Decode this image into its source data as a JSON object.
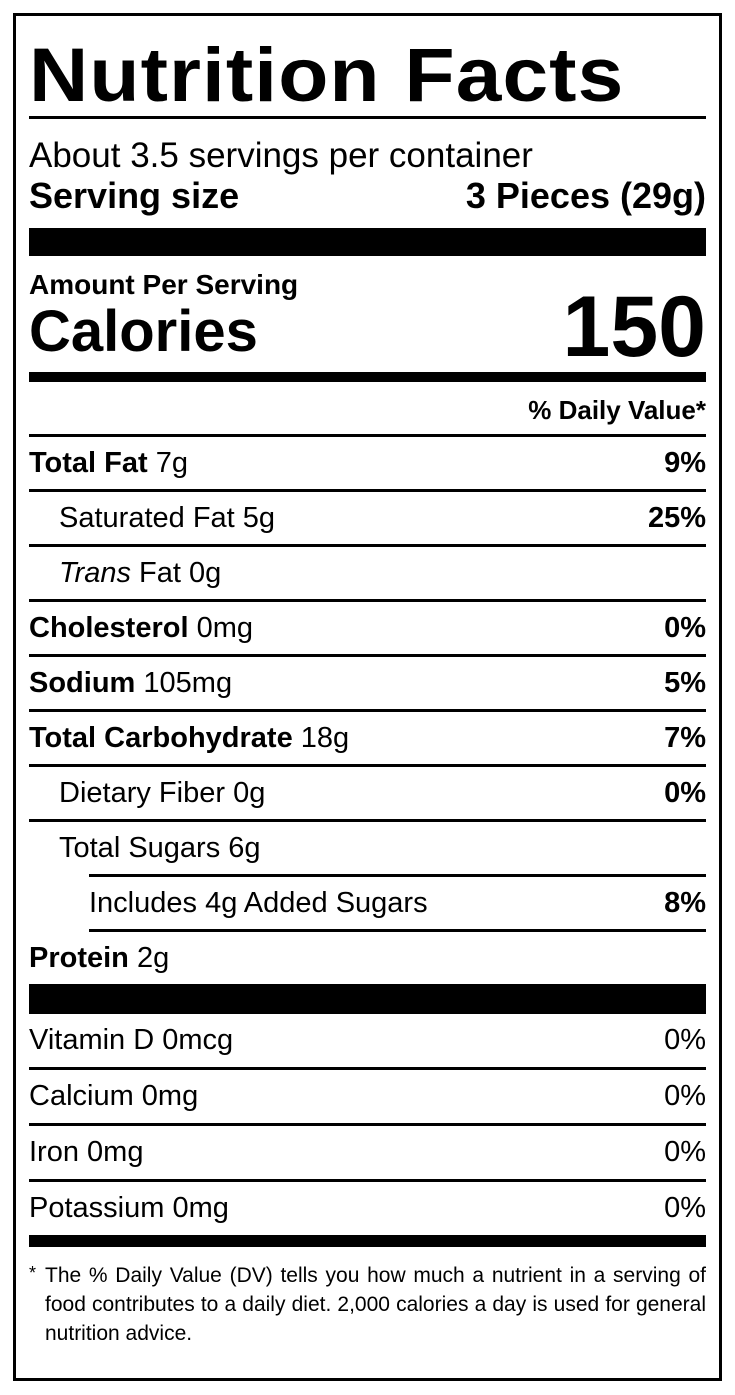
{
  "title": "Nutrition Facts",
  "servings_per_container": "About 3.5 servings per container",
  "serving_size": {
    "label": "Serving size",
    "value": "3 Pieces (29g)"
  },
  "amount_per_serving": "Amount Per Serving",
  "calories": {
    "label": "Calories",
    "value": "150"
  },
  "daily_value_header": "% Daily Value*",
  "nutrients": [
    {
      "name": "Total Fat",
      "amount": "7g",
      "dv": "9%"
    },
    {
      "name": "Saturated Fat",
      "amount": "5g",
      "dv": "25%"
    },
    {
      "name": "Trans",
      "name_suffix": "Fat",
      "amount": "0g",
      "dv": ""
    },
    {
      "name": "Cholesterol",
      "amount": "0mg",
      "dv": "0%"
    },
    {
      "name": "Sodium",
      "amount": "105mg",
      "dv": "5%"
    },
    {
      "name": "Total Carbohydrate",
      "amount": "18g",
      "dv": "7%"
    },
    {
      "name": "Dietary Fiber",
      "amount": "0g",
      "dv": "0%"
    },
    {
      "name": "Total Sugars",
      "amount": "6g",
      "dv": ""
    },
    {
      "name": "Includes 4g Added Sugars",
      "amount": "",
      "dv": "8%"
    },
    {
      "name": "Protein",
      "amount": "2g",
      "dv": ""
    }
  ],
  "vitamins": [
    {
      "name": "Vitamin D 0mcg",
      "dv": "0%"
    },
    {
      "name": "Calcium 0mg",
      "dv": "0%"
    },
    {
      "name": "Iron 0mg",
      "dv": "0%"
    },
    {
      "name": "Potassium 0mg",
      "dv": "0%"
    }
  ],
  "footnote": {
    "asterisk": "*",
    "text": "The % Daily Value (DV) tells you how much a nutrient in a serving of food contributes to a daily diet. 2,000 calories a day is used for general nutrition advice."
  }
}
